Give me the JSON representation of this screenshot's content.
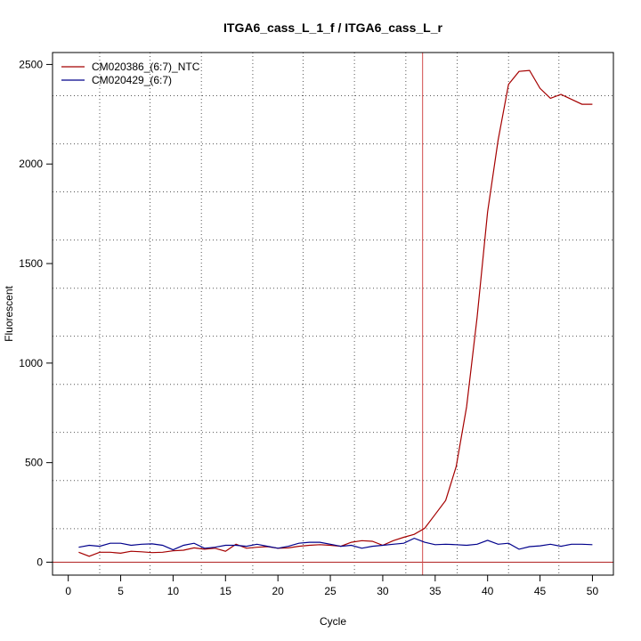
{
  "chart_data": {
    "type": "line",
    "title": "ITGA6_cass_L_1_f / ITGA6_cass_L_r",
    "xlabel": "Cycle",
    "ylabel": "Fluorescent",
    "xlim": [
      -1.5,
      52
    ],
    "ylim": [
      -65,
      2560
    ],
    "x_ticks": [
      0,
      5,
      10,
      15,
      20,
      25,
      30,
      35,
      40,
      45,
      50
    ],
    "y_ticks": [
      0,
      500,
      1000,
      1500,
      2000,
      2500
    ],
    "grid": true,
    "vertical_grid_x": [
      3,
      7.8,
      12.7,
      17.6,
      22.4,
      27.3,
      32.2,
      37.1,
      42,
      46.8
    ],
    "horizontal_grid_y": [
      168,
      410,
      652,
      893,
      1135,
      1376,
      1618,
      1860,
      2101,
      2343
    ],
    "threshold_x": 33.8,
    "baseline_y": 0,
    "legend_position": "top-left",
    "x": [
      1,
      2,
      3,
      4,
      5,
      6,
      7,
      8,
      9,
      10,
      11,
      12,
      13,
      14,
      15,
      16,
      17,
      18,
      19,
      20,
      21,
      22,
      23,
      24,
      25,
      26,
      27,
      28,
      29,
      30,
      31,
      32,
      33,
      34,
      35,
      36,
      37,
      38,
      39,
      40,
      41,
      42,
      43,
      44,
      45,
      46,
      47,
      48,
      49,
      50
    ],
    "series": [
      {
        "name": "CM020386_(6:7)_NTC",
        "color": "#a50000",
        "values": [
          50,
          30,
          50,
          50,
          45,
          55,
          52,
          48,
          50,
          57,
          60,
          72,
          65,
          70,
          55,
          90,
          70,
          75,
          78,
          70,
          72,
          80,
          85,
          88,
          85,
          80,
          100,
          108,
          105,
          85,
          108,
          125,
          140,
          170,
          240,
          310,
          480,
          780,
          1230,
          1760,
          2120,
          2400,
          2465,
          2470,
          2380,
          2330,
          2350,
          2325,
          2300,
          2300
        ]
      },
      {
        "name": "CM020429_(6:7)",
        "color": "#00008b",
        "values": [
          75,
          85,
          80,
          95,
          95,
          85,
          90,
          92,
          85,
          62,
          85,
          95,
          70,
          75,
          85,
          85,
          80,
          90,
          80,
          70,
          80,
          95,
          100,
          100,
          90,
          80,
          85,
          70,
          80,
          85,
          90,
          95,
          120,
          100,
          88,
          90,
          88,
          85,
          90,
          110,
          90,
          95,
          65,
          78,
          82,
          90,
          80,
          90,
          90,
          88
        ]
      }
    ]
  }
}
